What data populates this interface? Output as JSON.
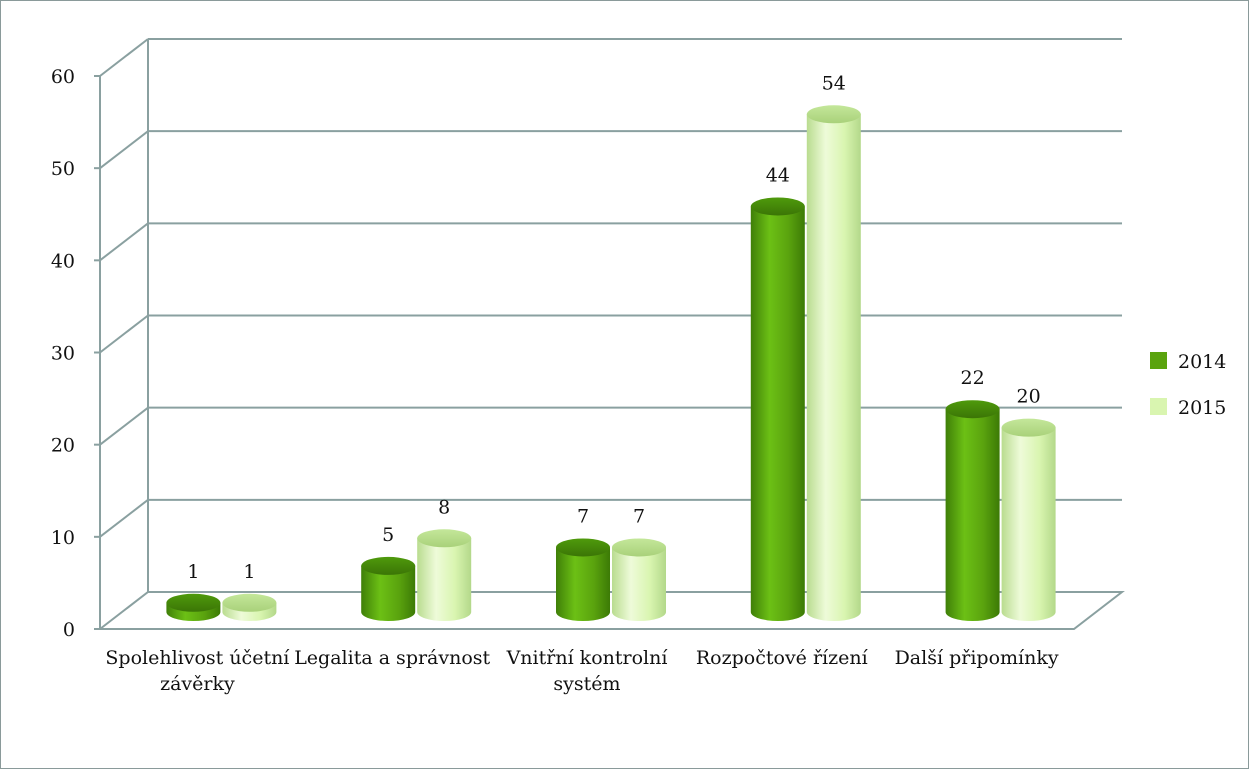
{
  "chart_data": {
    "type": "bar",
    "categories": [
      [
        "Spolehlivost účetní",
        "závěrky"
      ],
      [
        "Legalita a správnost"
      ],
      [
        "Vnitřní kontrolní",
        "systém"
      ],
      [
        "Rozpočtové řízení"
      ],
      [
        "Další připomínky"
      ]
    ],
    "series": [
      {
        "name": "2014",
        "values": [
          1,
          5,
          7,
          44,
          22
        ],
        "color": "#5aa30e"
      },
      {
        "name": "2015",
        "values": [
          1,
          8,
          7,
          54,
          20
        ],
        "color": "#d9f5b0"
      }
    ],
    "y_ticks": [
      "0",
      "10",
      "20",
      "30",
      "40",
      "50",
      "60"
    ],
    "ylim": [
      0,
      60
    ],
    "grid": true,
    "legend_position": "right",
    "style": "3d-cylinder"
  }
}
